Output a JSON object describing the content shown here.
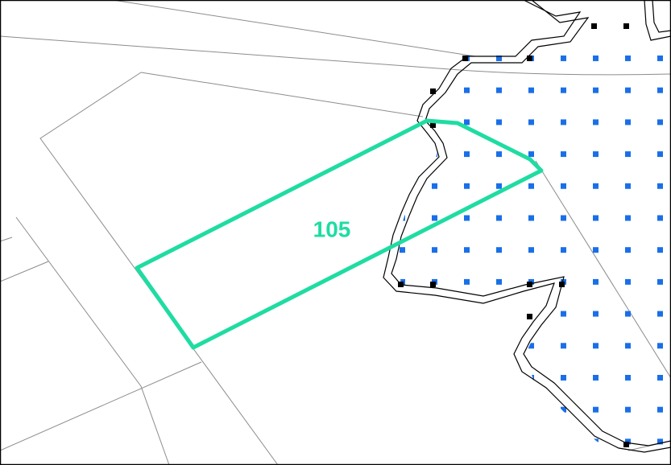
{
  "label": "105"
}
